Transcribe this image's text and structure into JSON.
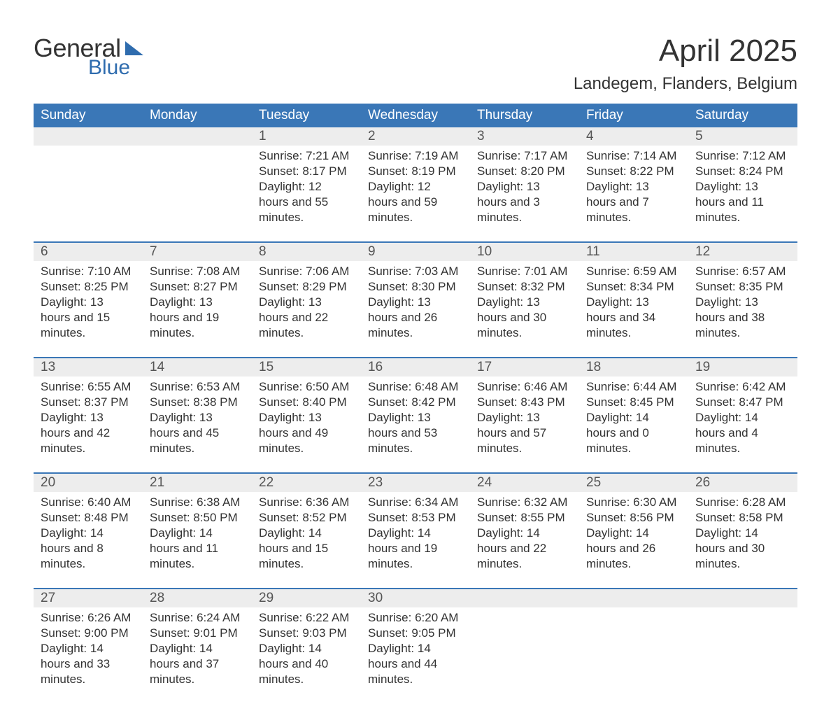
{
  "logo": {
    "word1": "General",
    "word2": "Blue",
    "triangle_color": "#2f6cae"
  },
  "title": "April 2025",
  "subtitle": "Landegem, Flanders, Belgium",
  "colors": {
    "header_bg": "#3a77b7",
    "header_text": "#ffffff",
    "daynum_bg": "#ededed",
    "row_border": "#3a77b7",
    "text": "#333333",
    "logo_blue": "#2f6cae"
  },
  "typography": {
    "title_fontsize": 44,
    "subtitle_fontsize": 24,
    "header_fontsize": 19,
    "daynum_fontsize": 19,
    "body_fontsize": 17
  },
  "columns": [
    "Sunday",
    "Monday",
    "Tuesday",
    "Wednesday",
    "Thursday",
    "Friday",
    "Saturday"
  ],
  "labels": {
    "sunrise": "Sunrise:",
    "sunset": "Sunset:",
    "daylight": "Daylight:"
  },
  "weeks": [
    [
      null,
      null,
      {
        "n": "1",
        "sunrise": "7:21 AM",
        "sunset": "8:17 PM",
        "day_h": "12",
        "day_m": "55"
      },
      {
        "n": "2",
        "sunrise": "7:19 AM",
        "sunset": "8:19 PM",
        "day_h": "12",
        "day_m": "59"
      },
      {
        "n": "3",
        "sunrise": "7:17 AM",
        "sunset": "8:20 PM",
        "day_h": "13",
        "day_m": "3"
      },
      {
        "n": "4",
        "sunrise": "7:14 AM",
        "sunset": "8:22 PM",
        "day_h": "13",
        "day_m": "7"
      },
      {
        "n": "5",
        "sunrise": "7:12 AM",
        "sunset": "8:24 PM",
        "day_h": "13",
        "day_m": "11"
      }
    ],
    [
      {
        "n": "6",
        "sunrise": "7:10 AM",
        "sunset": "8:25 PM",
        "day_h": "13",
        "day_m": "15"
      },
      {
        "n": "7",
        "sunrise": "7:08 AM",
        "sunset": "8:27 PM",
        "day_h": "13",
        "day_m": "19"
      },
      {
        "n": "8",
        "sunrise": "7:06 AM",
        "sunset": "8:29 PM",
        "day_h": "13",
        "day_m": "22"
      },
      {
        "n": "9",
        "sunrise": "7:03 AM",
        "sunset": "8:30 PM",
        "day_h": "13",
        "day_m": "26"
      },
      {
        "n": "10",
        "sunrise": "7:01 AM",
        "sunset": "8:32 PM",
        "day_h": "13",
        "day_m": "30"
      },
      {
        "n": "11",
        "sunrise": "6:59 AM",
        "sunset": "8:34 PM",
        "day_h": "13",
        "day_m": "34"
      },
      {
        "n": "12",
        "sunrise": "6:57 AM",
        "sunset": "8:35 PM",
        "day_h": "13",
        "day_m": "38"
      }
    ],
    [
      {
        "n": "13",
        "sunrise": "6:55 AM",
        "sunset": "8:37 PM",
        "day_h": "13",
        "day_m": "42"
      },
      {
        "n": "14",
        "sunrise": "6:53 AM",
        "sunset": "8:38 PM",
        "day_h": "13",
        "day_m": "45"
      },
      {
        "n": "15",
        "sunrise": "6:50 AM",
        "sunset": "8:40 PM",
        "day_h": "13",
        "day_m": "49"
      },
      {
        "n": "16",
        "sunrise": "6:48 AM",
        "sunset": "8:42 PM",
        "day_h": "13",
        "day_m": "53"
      },
      {
        "n": "17",
        "sunrise": "6:46 AM",
        "sunset": "8:43 PM",
        "day_h": "13",
        "day_m": "57"
      },
      {
        "n": "18",
        "sunrise": "6:44 AM",
        "sunset": "8:45 PM",
        "day_h": "14",
        "day_m": "0"
      },
      {
        "n": "19",
        "sunrise": "6:42 AM",
        "sunset": "8:47 PM",
        "day_h": "14",
        "day_m": "4"
      }
    ],
    [
      {
        "n": "20",
        "sunrise": "6:40 AM",
        "sunset": "8:48 PM",
        "day_h": "14",
        "day_m": "8"
      },
      {
        "n": "21",
        "sunrise": "6:38 AM",
        "sunset": "8:50 PM",
        "day_h": "14",
        "day_m": "11"
      },
      {
        "n": "22",
        "sunrise": "6:36 AM",
        "sunset": "8:52 PM",
        "day_h": "14",
        "day_m": "15"
      },
      {
        "n": "23",
        "sunrise": "6:34 AM",
        "sunset": "8:53 PM",
        "day_h": "14",
        "day_m": "19"
      },
      {
        "n": "24",
        "sunrise": "6:32 AM",
        "sunset": "8:55 PM",
        "day_h": "14",
        "day_m": "22"
      },
      {
        "n": "25",
        "sunrise": "6:30 AM",
        "sunset": "8:56 PM",
        "day_h": "14",
        "day_m": "26"
      },
      {
        "n": "26",
        "sunrise": "6:28 AM",
        "sunset": "8:58 PM",
        "day_h": "14",
        "day_m": "30"
      }
    ],
    [
      {
        "n": "27",
        "sunrise": "6:26 AM",
        "sunset": "9:00 PM",
        "day_h": "14",
        "day_m": "33"
      },
      {
        "n": "28",
        "sunrise": "6:24 AM",
        "sunset": "9:01 PM",
        "day_h": "14",
        "day_m": "37"
      },
      {
        "n": "29",
        "sunrise": "6:22 AM",
        "sunset": "9:03 PM",
        "day_h": "14",
        "day_m": "40"
      },
      {
        "n": "30",
        "sunrise": "6:20 AM",
        "sunset": "9:05 PM",
        "day_h": "14",
        "day_m": "44"
      },
      null,
      null,
      null
    ]
  ]
}
